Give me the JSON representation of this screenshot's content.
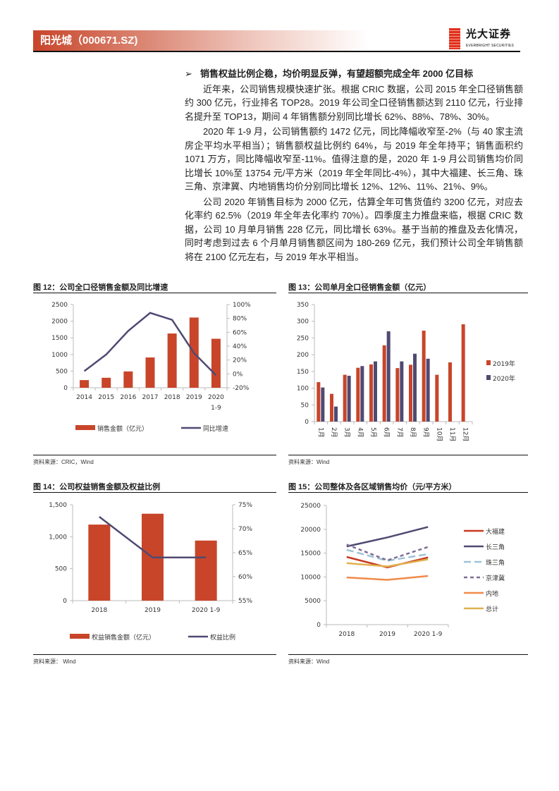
{
  "header": {
    "title": "阳光城（000671.SZ)",
    "logo_cn": "光大证券",
    "logo_en": "EVERBRIGHT SECURITIES",
    "accent": "#c8452a"
  },
  "body": {
    "heading": "销售权益比例企稳，均价明显反弹，有望超额完成全年 2000 亿目标",
    "heading_icon": "arrow-bullet-icon",
    "paragraphs": [
      "近年来，公司销售规模快速扩张。根据 CRIC 数据，公司 2015 年全口径销售额约 300 亿元，行业排名 TOP28。2019 年公司全口径销售额达到 2110 亿元，行业排名提升至 TOP13，期间 4 年销售额分别同比增长 62%、88%、78%、30%。",
      "2020 年 1-9 月，公司销售额约 1472 亿元，同比降幅收窄至-2%（与 40 家主流房企平均水平相当）；销售额权益比例约 64%，与 2019 年全年持平；销售面积约 1071 万方，同比降幅收窄至-11%。值得注意的是，2020 年 1-9 月公司销售均价同比增长 10%至 13754 元/平方米（2019 年全年同比-4%），其中大福建、长三角、珠三角、京津冀、内地销售均价分别同比增长 12%、12%、11%、21%、9%。",
      "公司 2020 年销售目标为 2000 亿元，估算全年可售货值约 3200 亿元，对应去化率约 62.5%（2019 年全年去化率约 70%）。四季度主力推盘来临，根据 CRIC 数据，公司 10 月单月销售 228 亿元，同比增长 63%。基于当前的推盘及去化情况，同时考虑到过去 6 个月单月销售额区间为 180-269 亿元，我们预计公司全年销售额将在 2100 亿元左右，与 2019 年水平相当。"
    ]
  },
  "figures": [
    {
      "title": "图 12：公司全口径销售金额及同比增速",
      "source": "资料来源：CRIC，Wind"
    },
    {
      "title": "图 13：公司单月全口径销售金额（亿元）",
      "source": "资料来源：Wind"
    },
    {
      "title": "图 14：公司权益销售金额及权益比例",
      "source": "资料来源： Wind"
    },
    {
      "title": "图 15：公司整体及各区域销售均价（元/平方米）",
      "source": "资料来源：Wind"
    }
  ],
  "chart_data": [
    {
      "type": "bar+line",
      "categories": [
        "2014",
        "2015",
        "2016",
        "2017",
        "2018",
        "2019",
        "2020 1-9"
      ],
      "series": [
        {
          "name": "销售金额（亿元）",
          "type": "bar",
          "axis": "left",
          "color": "#c8452a",
          "values": [
            230,
            300,
            490,
            910,
            1630,
            2110,
            1472
          ]
        },
        {
          "name": "同比增速",
          "type": "line",
          "axis": "right",
          "color": "#4f4a72",
          "values": [
            4,
            28,
            62,
            88,
            78,
            30,
            -2
          ]
        }
      ],
      "ylim": [
        0,
        2500
      ],
      "yticks": [
        "0",
        "500",
        "1000",
        "1500",
        "2000",
        "2500"
      ],
      "y2lim": [
        -20,
        100
      ],
      "y2ticks": [
        "-20%",
        "0%",
        "20%",
        "40%",
        "60%",
        "80%",
        "100%"
      ],
      "legend": "bottom"
    },
    {
      "type": "bar",
      "categories": [
        "1月",
        "2月",
        "3月",
        "4月",
        "5月",
        "6月",
        "7月",
        "8月",
        "9月",
        "10月",
        "11月",
        "12月"
      ],
      "series": [
        {
          "name": "2019年",
          "color": "#c8452a",
          "values": [
            118,
            83,
            140,
            161,
            171,
            228,
            160,
            170,
            272,
            140,
            177,
            291
          ]
        },
        {
          "name": "2020年",
          "color": "#4f4a72",
          "values": [
            102,
            45,
            137,
            166,
            180,
            270,
            180,
            203,
            188,
            null,
            null,
            null
          ]
        }
      ],
      "ylim": [
        0,
        350
      ],
      "yticks": [
        "0",
        "50",
        "100",
        "150",
        "200",
        "250",
        "300",
        "350"
      ],
      "legend": "right"
    },
    {
      "type": "bar+line",
      "categories": [
        "2018",
        "2019",
        "2020 1-9"
      ],
      "series": [
        {
          "name": "权益销售金额（亿元）",
          "type": "bar",
          "axis": "left",
          "color": "#c8452a",
          "values": [
            1190,
            1360,
            940
          ]
        },
        {
          "name": "权益比例",
          "type": "line",
          "axis": "right",
          "color": "#4f4a72",
          "values": [
            72.5,
            64,
            64
          ]
        }
      ],
      "ylim": [
        0,
        1500
      ],
      "yticks": [
        "0",
        "500",
        "1,000",
        "1,500"
      ],
      "y2lim": [
        55,
        75
      ],
      "y2ticks": [
        "55%",
        "60%",
        "65%",
        "70%",
        "75%"
      ],
      "legend": "bottom"
    },
    {
      "type": "line",
      "categories": [
        "2018",
        "2019",
        "2020 1-9"
      ],
      "series": [
        {
          "name": "大福建",
          "color": "#c8391f",
          "dash": false,
          "values": [
            14200,
            12000,
            14100
          ]
        },
        {
          "name": "长三角",
          "color": "#4f4a72",
          "dash": false,
          "values": [
            16400,
            18300,
            20500
          ]
        },
        {
          "name": "珠三角",
          "color": "#9ec3d6",
          "dash": true,
          "values": [
            15700,
            13400,
            14800
          ]
        },
        {
          "name": "京津冀",
          "color": "#7e6e96",
          "dash": true,
          "values": [
            16800,
            13500,
            16300
          ]
        },
        {
          "name": "内地",
          "color": "#f08a4b",
          "dash": false,
          "values": [
            9900,
            9400,
            10200
          ]
        },
        {
          "name": "总计",
          "color": "#e0b050",
          "dash": false,
          "values": [
            12900,
            12200,
            13700
          ]
        }
      ],
      "ylim": [
        0,
        25000
      ],
      "yticks": [
        "0",
        "5000",
        "10000",
        "15000",
        "20000",
        "25000"
      ],
      "legend": "right"
    }
  ]
}
